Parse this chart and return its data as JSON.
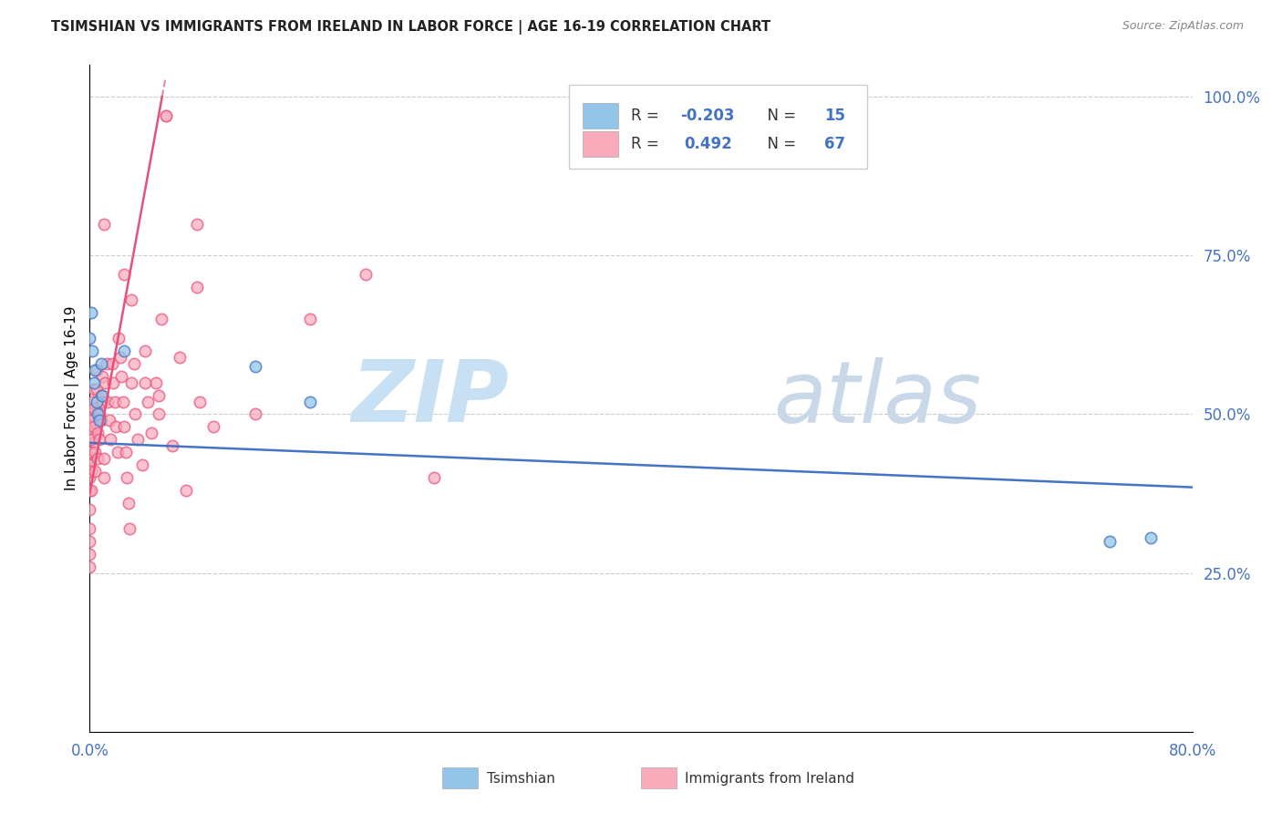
{
  "title": "TSIMSHIAN VS IMMIGRANTS FROM IRELAND IN LABOR FORCE | AGE 16-19 CORRELATION CHART",
  "source": "Source: ZipAtlas.com",
  "ylabel": "In Labor Force | Age 16-19",
  "x_min": 0.0,
  "x_max": 0.8,
  "y_min": 0.0,
  "y_max": 1.05,
  "watermark_zip": "ZIP",
  "watermark_atlas": "atlas",
  "legend_blue_label": "Tsimshian",
  "legend_pink_label": "Immigrants from Ireland",
  "tsimshian_R": "-0.203",
  "tsimshian_N": "15",
  "ireland_R": "0.492",
  "ireland_N": "67",
  "blue_marker_color": "#92C5E8",
  "pink_marker_color": "#F9AABB",
  "blue_line_color": "#4472C4",
  "pink_line_color": "#E8507A",
  "grid_color": "#CCCCCC",
  "background_color": "#FFFFFF",
  "blue_line_x": [
    0.0,
    0.8
  ],
  "blue_line_y": [
    0.455,
    0.385
  ],
  "pink_line_x": [
    0.0,
    0.055
  ],
  "pink_line_y": [
    0.375,
    1.03
  ],
  "tsimshian_x": [
    0.0,
    0.001,
    0.002,
    0.003,
    0.004,
    0.005,
    0.006,
    0.007,
    0.008,
    0.009,
    0.74,
    0.77,
    0.12,
    0.16,
    0.025
  ],
  "tsimshian_y": [
    0.62,
    0.66,
    0.6,
    0.55,
    0.57,
    0.52,
    0.5,
    0.49,
    0.58,
    0.53,
    0.3,
    0.305,
    0.575,
    0.52,
    0.6
  ],
  "ireland_x_cluster": [
    0.0,
    0.0,
    0.0,
    0.0,
    0.0,
    0.0,
    0.0,
    0.0,
    0.0,
    0.0,
    0.0,
    0.0,
    0.001,
    0.001,
    0.001,
    0.001,
    0.001,
    0.002,
    0.002,
    0.002,
    0.003,
    0.003,
    0.003,
    0.004,
    0.004,
    0.005,
    0.005,
    0.006,
    0.006,
    0.007,
    0.007,
    0.008,
    0.008,
    0.009,
    0.009,
    0.01,
    0.01,
    0.011,
    0.012,
    0.013,
    0.014,
    0.015,
    0.016,
    0.017,
    0.018,
    0.019,
    0.02,
    0.021,
    0.022,
    0.023,
    0.024,
    0.025,
    0.026,
    0.027,
    0.028,
    0.029,
    0.03,
    0.032,
    0.033,
    0.035,
    0.038,
    0.04,
    0.042,
    0.045,
    0.048,
    0.05,
    0.052
  ],
  "ireland_y_cluster": [
    0.43,
    0.4,
    0.38,
    0.35,
    0.32,
    0.3,
    0.28,
    0.26,
    0.44,
    0.46,
    0.48,
    0.42,
    0.5,
    0.47,
    0.44,
    0.41,
    0.38,
    0.52,
    0.49,
    0.46,
    0.54,
    0.51,
    0.48,
    0.44,
    0.41,
    0.57,
    0.54,
    0.47,
    0.43,
    0.5,
    0.46,
    0.53,
    0.49,
    0.56,
    0.52,
    0.43,
    0.4,
    0.55,
    0.58,
    0.52,
    0.49,
    0.46,
    0.58,
    0.55,
    0.52,
    0.48,
    0.44,
    0.62,
    0.59,
    0.56,
    0.52,
    0.48,
    0.44,
    0.4,
    0.36,
    0.32,
    0.55,
    0.58,
    0.5,
    0.46,
    0.42,
    0.6,
    0.52,
    0.47,
    0.55,
    0.5,
    0.65
  ],
  "ireland_outlier_x": [
    0.055
  ],
  "ireland_outlier_y": [
    0.97
  ],
  "ireland_spread_x": [
    0.01,
    0.025,
    0.03,
    0.04,
    0.078,
    0.078,
    0.16,
    0.2,
    0.25,
    0.12,
    0.09,
    0.08,
    0.065,
    0.07,
    0.06,
    0.05
  ],
  "ireland_spread_y": [
    0.8,
    0.72,
    0.68,
    0.55,
    0.8,
    0.7,
    0.65,
    0.72,
    0.4,
    0.5,
    0.48,
    0.52,
    0.59,
    0.38,
    0.45,
    0.53
  ]
}
